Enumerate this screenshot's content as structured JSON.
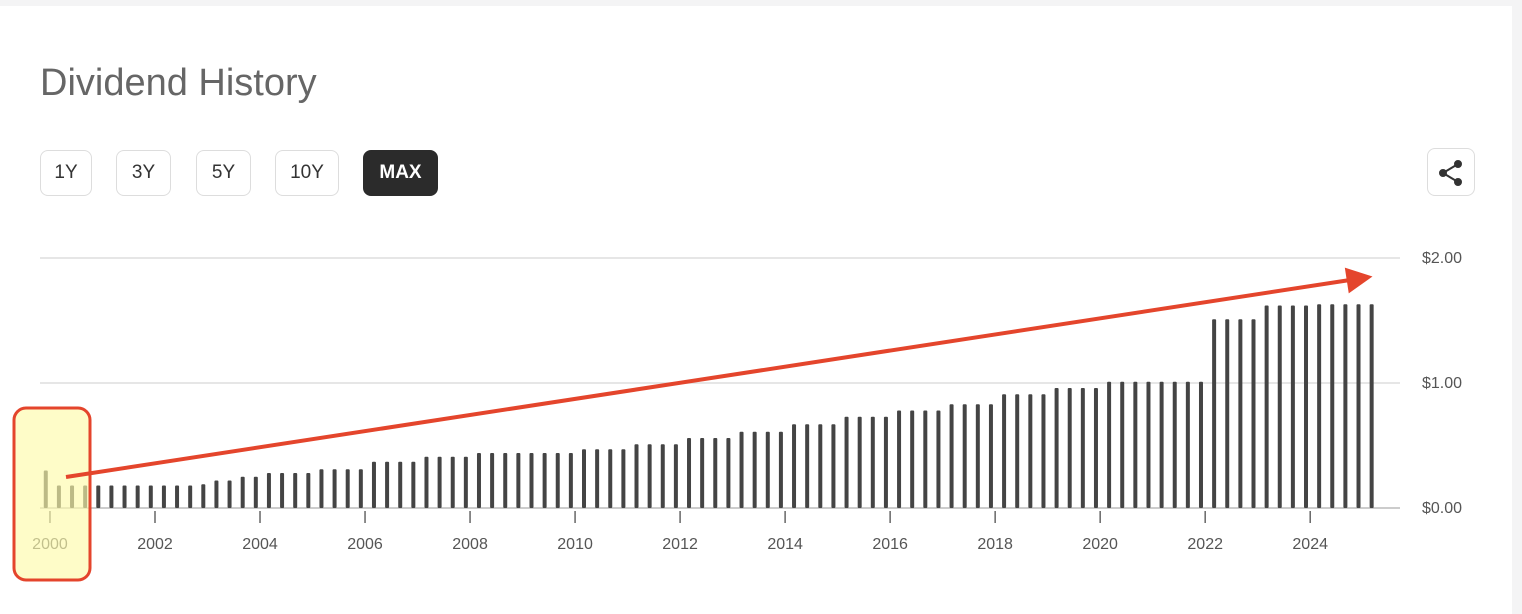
{
  "header": {
    "title": "Dividend History"
  },
  "ranges": [
    "1Y",
    "3Y",
    "5Y",
    "10Y",
    "MAX"
  ],
  "active_range": 4,
  "chart_data": {
    "type": "bar",
    "color": "#444444",
    "x": [
      1999.92,
      2000.17,
      2000.42,
      2000.67,
      2000.92,
      2001.17,
      2001.42,
      2001.67,
      2001.92,
      2002.17,
      2002.42,
      2002.67,
      2002.92,
      2003.17,
      2003.42,
      2003.67,
      2003.92,
      2004.17,
      2004.42,
      2004.67,
      2004.92,
      2005.17,
      2005.42,
      2005.67,
      2005.92,
      2006.17,
      2006.42,
      2006.67,
      2006.92,
      2007.17,
      2007.42,
      2007.67,
      2007.92,
      2008.17,
      2008.42,
      2008.67,
      2008.92,
      2009.17,
      2009.42,
      2009.67,
      2009.92,
      2010.17,
      2010.42,
      2010.67,
      2010.92,
      2011.17,
      2011.42,
      2011.67,
      2011.92,
      2012.17,
      2012.42,
      2012.67,
      2012.92,
      2013.17,
      2013.42,
      2013.67,
      2013.92,
      2014.17,
      2014.42,
      2014.67,
      2014.92,
      2015.17,
      2015.42,
      2015.67,
      2015.92,
      2016.17,
      2016.42,
      2016.67,
      2016.92,
      2017.17,
      2017.42,
      2017.67,
      2017.92,
      2018.17,
      2018.42,
      2018.67,
      2018.92,
      2019.17,
      2019.42,
      2019.67,
      2019.92,
      2020.17,
      2020.42,
      2020.67,
      2020.92,
      2021.17,
      2021.42,
      2021.67,
      2021.92,
      2022.17,
      2022.42,
      2022.67,
      2022.92,
      2023.17,
      2023.42,
      2023.67,
      2023.92,
      2024.17,
      2024.42,
      2024.67,
      2024.92,
      2025.17
    ],
    "values": [
      0.3,
      0.18,
      0.18,
      0.18,
      0.18,
      0.18,
      0.18,
      0.18,
      0.18,
      0.18,
      0.18,
      0.18,
      0.19,
      0.22,
      0.22,
      0.25,
      0.25,
      0.28,
      0.28,
      0.28,
      0.28,
      0.31,
      0.31,
      0.31,
      0.31,
      0.37,
      0.37,
      0.37,
      0.37,
      0.41,
      0.41,
      0.41,
      0.41,
      0.44,
      0.44,
      0.44,
      0.44,
      0.44,
      0.44,
      0.44,
      0.44,
      0.47,
      0.47,
      0.47,
      0.47,
      0.51,
      0.51,
      0.51,
      0.51,
      0.56,
      0.56,
      0.56,
      0.56,
      0.61,
      0.61,
      0.61,
      0.61,
      0.67,
      0.67,
      0.67,
      0.67,
      0.73,
      0.73,
      0.73,
      0.73,
      0.78,
      0.78,
      0.78,
      0.78,
      0.83,
      0.83,
      0.83,
      0.83,
      0.91,
      0.91,
      0.91,
      0.91,
      0.96,
      0.96,
      0.96,
      0.96,
      1.01,
      1.01,
      1.01,
      1.01,
      1.01,
      1.01,
      1.01,
      1.01,
      1.51,
      1.51,
      1.51,
      1.51,
      1.62,
      1.62,
      1.62,
      1.62,
      1.63,
      1.63,
      1.63,
      1.63,
      1.63
    ],
    "xlim": [
      1999.81,
      2025.71
    ],
    "xticks": [
      2000,
      2002,
      2004,
      2006,
      2008,
      2010,
      2012,
      2014,
      2016,
      2018,
      2020,
      2022,
      2024
    ],
    "ylim": [
      0,
      2
    ],
    "yticks": [
      {
        "value": 0,
        "label": "$0.00"
      },
      {
        "value": 1,
        "label": "$1.00"
      },
      {
        "value": 2,
        "label": "$2.00"
      }
    ],
    "grid": true
  }
}
